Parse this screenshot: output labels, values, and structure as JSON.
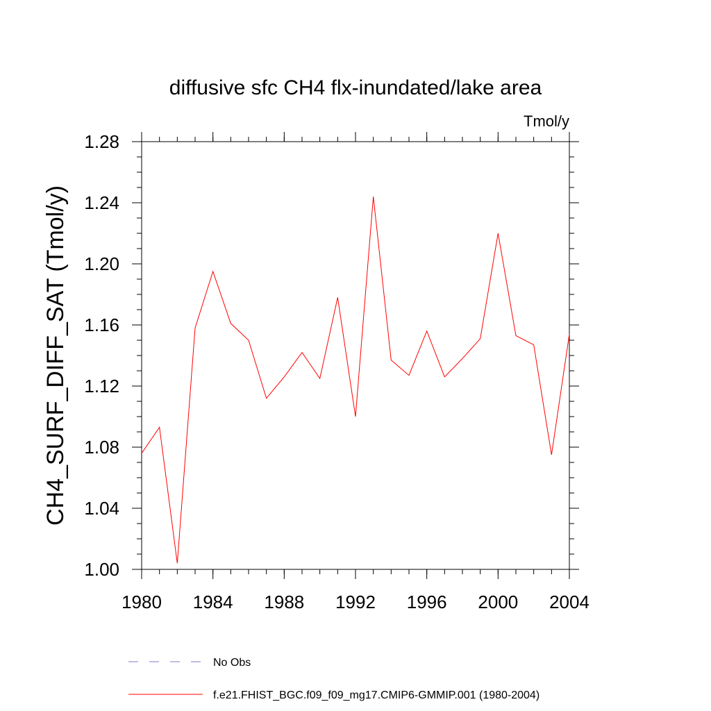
{
  "chart_data": {
    "type": "line",
    "title": "diffusive sfc CH4 flx-inundated/lake area",
    "units_label": "Tmol/y",
    "ylabel": "CH4_SURF_DIFF_SAT  (Tmol/y)",
    "xlabel": "",
    "xlim": [
      1980,
      2004
    ],
    "ylim": [
      1.0,
      1.28
    ],
    "x_ticks": [
      1980,
      1984,
      1988,
      1992,
      1996,
      2000,
      2004
    ],
    "y_ticks": [
      1.0,
      1.04,
      1.08,
      1.12,
      1.16,
      1.2,
      1.24,
      1.28
    ],
    "x_tick_labels": [
      "1980",
      "1984",
      "1988",
      "1992",
      "1996",
      "2000",
      "2004"
    ],
    "y_tick_labels": [
      "1.00",
      "1.04",
      "1.08",
      "1.12",
      "1.16",
      "1.20",
      "1.24",
      "1.28"
    ],
    "grid": false,
    "legend_position": "bottom",
    "series": [
      {
        "name": "f.e21.FHIST_BGC.f09_f09_mg17.CMIP6-GMMIP.001 (1980-2004)",
        "color": "#ff0000",
        "dash": "solid",
        "x": [
          1980,
          1981,
          1982,
          1983,
          1984,
          1985,
          1986,
          1987,
          1988,
          1989,
          1990,
          1991,
          1992,
          1993,
          1994,
          1995,
          1996,
          1997,
          1998,
          1999,
          2000,
          2001,
          2002,
          2003,
          2004
        ],
        "values": [
          1.076,
          1.093,
          1.004,
          1.158,
          1.195,
          1.161,
          1.15,
          1.112,
          1.126,
          1.142,
          1.125,
          1.178,
          1.1,
          1.244,
          1.137,
          1.127,
          1.156,
          1.126,
          1.138,
          1.151,
          1.22,
          1.153,
          1.147,
          1.075,
          1.154
        ]
      }
    ],
    "legend": [
      {
        "label": "No Obs",
        "color": "#7b7bcc",
        "dash": "dashed"
      },
      {
        "label": "f.e21.FHIST_BGC.f09_f09_mg17.CMIP6-GMMIP.001 (1980-2004)",
        "color": "#ff0000",
        "dash": "solid"
      }
    ]
  }
}
